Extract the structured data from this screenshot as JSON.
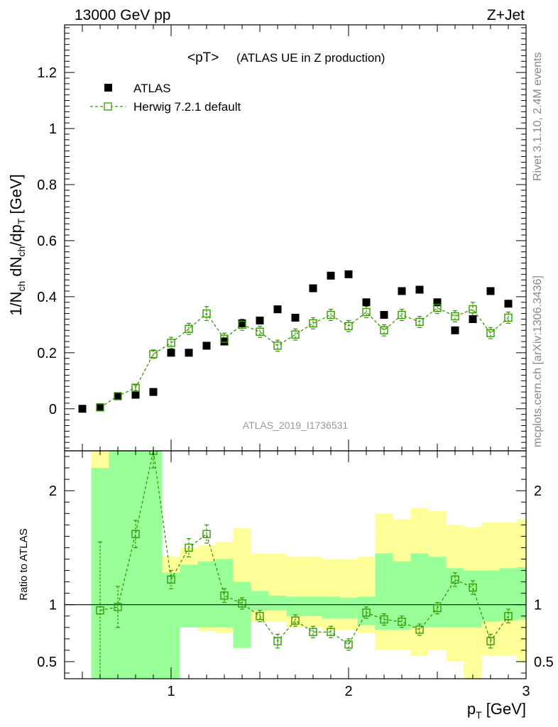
{
  "header": {
    "left_title": "13000 GeV pp",
    "right_title": "Z+Jet"
  },
  "plot_title": "<pT>",
  "plot_subtitle": "(ATLAS UE in Z production)",
  "side_labels": {
    "rivet": "Rivet 3.1.10,  2.4M events",
    "mcplots": "mcplots.cern.ch [arXiv:1306.3436]"
  },
  "analysis_id": "ATLAS_2019_I1736531",
  "chart_data": [
    {
      "panel": "main",
      "type": "scatter",
      "xlabel": "p_T [GeV]",
      "ylabel": "1/N_ch dN_ch/dp_T [GeV]",
      "xlim": [
        0.4,
        3.0
      ],
      "ylim": [
        -0.15,
        1.37
      ],
      "yticks": [
        0,
        0.2,
        0.4,
        0.6,
        0.8,
        1,
        1.2
      ],
      "ytick_labels": [
        "0",
        "0.2",
        "0.4",
        "0.6",
        "0.8",
        "1",
        "1.2"
      ],
      "x": [
        0.5,
        0.6,
        0.7,
        0.8,
        0.9,
        1.0,
        1.1,
        1.2,
        1.3,
        1.4,
        1.5,
        1.6,
        1.7,
        1.8,
        1.9,
        2.0,
        2.1,
        2.2,
        2.3,
        2.4,
        2.5,
        2.6,
        2.7,
        2.8,
        2.9
      ],
      "legend_position": "top-left",
      "series": [
        {
          "name": "ATLAS",
          "color": "#000000",
          "marker": "filled-square",
          "values": [
            0.0,
            0.005,
            0.045,
            0.05,
            0.06,
            0.2,
            0.2,
            0.225,
            0.24,
            0.305,
            0.315,
            0.355,
            0.325,
            0.43,
            0.475,
            0.48,
            0.38,
            0.335,
            0.42,
            0.425,
            0.38,
            0.28,
            0.32,
            0.42,
            0.375
          ]
        },
        {
          "name": "Herwig 7.2.1 default",
          "color": "#339900",
          "marker": "open-square",
          "line": "dashed",
          "values": [
            null,
            0.005,
            0.045,
            0.075,
            0.195,
            0.235,
            0.285,
            0.34,
            0.25,
            0.3,
            0.275,
            0.225,
            0.265,
            0.305,
            0.335,
            0.295,
            0.345,
            0.28,
            0.335,
            0.31,
            0.36,
            0.33,
            0.355,
            0.27,
            0.325
          ],
          "errors": [
            null,
            0.003,
            0.005,
            0.01,
            0.015,
            0.02,
            0.02,
            0.025,
            0.02,
            0.02,
            0.02,
            0.02,
            0.02,
            0.02,
            0.02,
            0.02,
            0.02,
            0.02,
            0.02,
            0.02,
            0.02,
            0.02,
            0.025,
            0.02,
            0.02
          ]
        }
      ]
    },
    {
      "panel": "ratio",
      "type": "scatter",
      "xlabel": "p_T [GeV]",
      "ylabel": "Ratio to ATLAS",
      "xlim": [
        0.4,
        3.0
      ],
      "ylim": [
        0.35,
        2.35
      ],
      "xticks": [
        1,
        2,
        3
      ],
      "xtick_labels": [
        "1",
        "2",
        "3"
      ],
      "yticks": [
        0.5,
        1,
        2
      ],
      "ytick_labels": [
        "0.5",
        "1",
        "2"
      ],
      "bin_edges": [
        0.55,
        0.65,
        0.75,
        0.85,
        0.95,
        1.05,
        1.15,
        1.25,
        1.35,
        1.45,
        1.55,
        1.65,
        1.75,
        1.85,
        1.95,
        2.05,
        2.15,
        2.25,
        2.35,
        2.45,
        2.55,
        2.65,
        2.75,
        2.85,
        2.95
      ],
      "band_1sigma": {
        "color": "#99ff99",
        "lo": [
          0.35,
          0.35,
          0.35,
          0.35,
          0.35,
          0.8,
          0.8,
          0.8,
          0.62,
          0.95,
          0.95,
          0.9,
          0.9,
          0.88,
          0.88,
          0.82,
          0.78,
          0.78,
          0.8,
          0.8,
          0.8,
          0.8,
          0.85,
          0.86,
          0.87
        ],
        "hi": [
          2.2,
          2.35,
          2.35,
          2.35,
          1.28,
          1.35,
          1.38,
          1.4,
          1.2,
          1.12,
          1.08,
          1.07,
          1.07,
          1.07,
          1.06,
          1.07,
          1.45,
          1.38,
          1.45,
          1.42,
          1.32,
          1.3,
          1.3,
          1.32,
          1.33
        ]
      },
      "band_2sigma": {
        "color": "#ffff99",
        "lo": [
          0.35,
          0.35,
          0.35,
          0.35,
          0.35,
          0.8,
          0.77,
          0.75,
          0.62,
          0.85,
          0.85,
          0.8,
          0.8,
          0.78,
          0.78,
          0.75,
          0.6,
          0.6,
          0.55,
          0.6,
          0.5,
          0.35,
          0.55,
          0.55,
          0.5
        ],
        "hi": [
          2.35,
          2.35,
          2.35,
          2.35,
          1.42,
          1.5,
          1.52,
          1.55,
          1.67,
          1.45,
          1.45,
          1.42,
          1.42,
          1.4,
          1.4,
          1.42,
          1.8,
          1.75,
          1.85,
          1.82,
          1.7,
          1.68,
          1.72,
          1.72,
          1.75
        ]
      },
      "series": [
        {
          "name": "Herwig 7.2.1 default",
          "color": "#339900",
          "marker": "open-square",
          "line": "dashed",
          "x": [
            0.6,
            0.7,
            0.8,
            0.9,
            1.0,
            1.1,
            1.2,
            1.3,
            1.4,
            1.5,
            1.6,
            1.7,
            1.8,
            1.9,
            2.0,
            2.1,
            2.2,
            2.3,
            2.4,
            2.5,
            2.6,
            2.7,
            2.8,
            2.9
          ],
          "values": [
            0.95,
            0.98,
            1.62,
            2.35,
            1.22,
            1.5,
            1.62,
            1.08,
            1.01,
            0.9,
            0.68,
            0.86,
            0.76,
            0.76,
            0.65,
            0.93,
            0.87,
            0.85,
            0.78,
            0.97,
            1.22,
            1.15,
            0.68,
            0.9
          ],
          "err_lo": [
            0.95,
            0.18,
            0.12,
            0.15,
            0.08,
            0.08,
            0.08,
            0.06,
            0.05,
            0.05,
            0.06,
            0.05,
            0.05,
            0.05,
            0.05,
            0.05,
            0.05,
            0.05,
            0.05,
            0.05,
            0.06,
            0.06,
            0.06,
            0.06
          ],
          "err_hi": [
            0.6,
            0.18,
            0.12,
            0.15,
            0.08,
            0.08,
            0.08,
            0.06,
            0.05,
            0.05,
            0.06,
            0.05,
            0.05,
            0.05,
            0.05,
            0.05,
            0.05,
            0.05,
            0.05,
            0.05,
            0.06,
            0.06,
            0.06,
            0.06
          ]
        }
      ]
    }
  ]
}
